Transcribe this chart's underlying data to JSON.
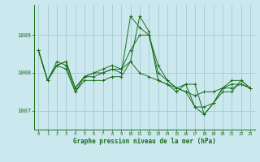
{
  "title": "Graphe pression niveau de la mer (hPa)",
  "bg_color": "#cce8ef",
  "grid_color": "#aacdd6",
  "line_color": "#1a6e1a",
  "marker_color": "#1a6e1a",
  "x_ticks": [
    0,
    1,
    2,
    3,
    4,
    5,
    6,
    7,
    8,
    9,
    10,
    11,
    12,
    13,
    14,
    15,
    16,
    17,
    18,
    19,
    20,
    21,
    22,
    23
  ],
  "ylim": [
    1006.5,
    1009.8
  ],
  "yticks": [
    1007,
    1008,
    1009
  ],
  "series": [
    [
      1008.6,
      1007.8,
      1008.2,
      1008.3,
      1007.6,
      1007.9,
      1007.9,
      1008.0,
      1008.1,
      1008.0,
      1009.5,
      1009.2,
      1009.0,
      1008.0,
      1007.8,
      1007.6,
      1007.5,
      1007.1,
      1006.9,
      1007.2,
      1007.6,
      1007.6,
      1007.7,
      1007.6
    ],
    [
      1008.6,
      1007.8,
      1008.2,
      1008.3,
      1007.6,
      1007.9,
      1008.0,
      1008.1,
      1008.2,
      1008.1,
      1008.3,
      1008.0,
      1007.9,
      1007.8,
      1007.7,
      1007.6,
      1007.5,
      1007.4,
      1007.5,
      1007.5,
      1007.6,
      1007.7,
      1007.7,
      1007.6
    ],
    [
      1008.6,
      1007.8,
      1008.2,
      1008.1,
      1007.5,
      1007.8,
      1007.8,
      1007.8,
      1007.9,
      1007.9,
      1008.3,
      1009.5,
      1009.1,
      1007.8,
      1007.7,
      1007.5,
      1007.7,
      1007.7,
      1006.9,
      1007.2,
      1007.6,
      1007.8,
      1007.8,
      1007.6
    ],
    [
      1008.6,
      1007.8,
      1008.3,
      1008.2,
      1007.5,
      1007.9,
      1008.0,
      1008.0,
      1008.1,
      1008.1,
      1008.6,
      1009.0,
      1009.0,
      1008.2,
      1007.8,
      1007.6,
      1007.7,
      1007.1,
      1007.1,
      1007.2,
      1007.5,
      1007.5,
      1007.8,
      1007.6
    ]
  ]
}
